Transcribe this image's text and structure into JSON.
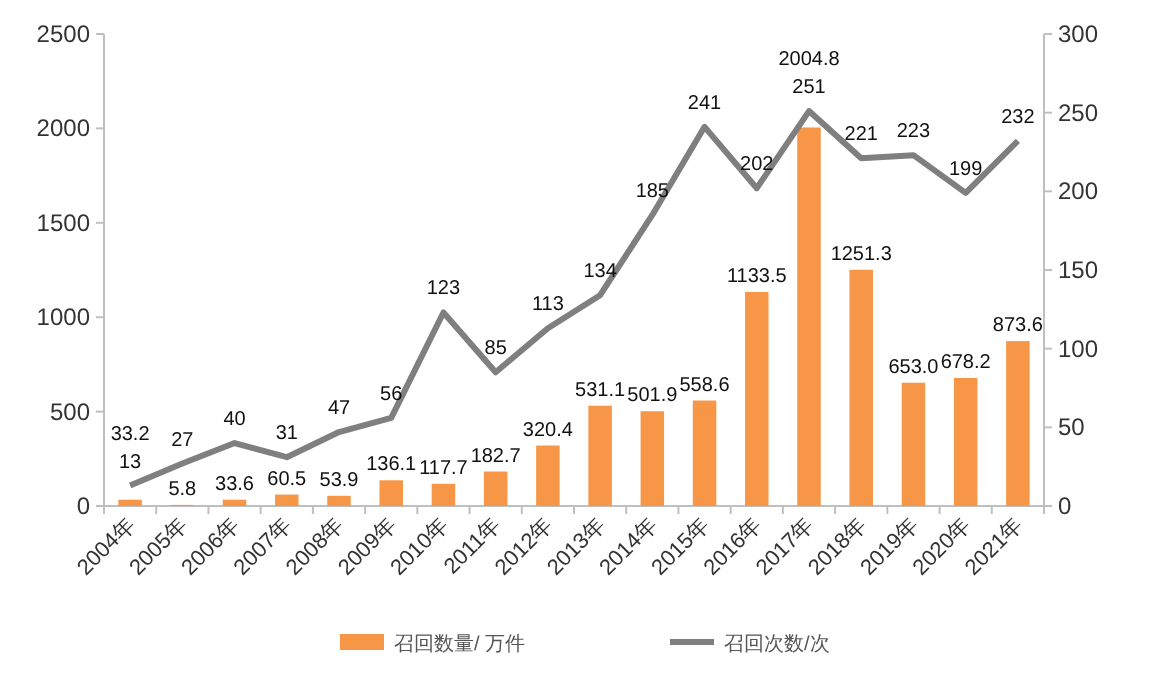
{
  "chart_data": {
    "type": "bar",
    "categories": [
      "2004年",
      "2005年",
      "2006年",
      "2007年",
      "2008年",
      "2009年",
      "2010年",
      "2011年",
      "2012年",
      "2013年",
      "2014年",
      "2015年",
      "2016年",
      "2017年",
      "2018年",
      "2019年",
      "2020年",
      "2021年"
    ],
    "series": [
      {
        "name": "召回数量/ 万件",
        "color": "#f79646",
        "values": [
          33.2,
          5.8,
          33.6,
          60.5,
          53.9,
          136.1,
          117.7,
          182.7,
          320.4,
          531.1,
          501.9,
          558.6,
          1133.5,
          2004.8,
          1251.3,
          653.0,
          678.2,
          873.6
        ],
        "value_labels": [
          "33.2",
          "5.8",
          "33.6",
          "60.5",
          "53.9",
          "136.1",
          "117.7",
          "182.7",
          "320.4",
          "531.1",
          "501.9",
          "558.6",
          "1133.5",
          "2004.8",
          "1251.3",
          "653.0",
          "678.2",
          "873.6"
        ]
      },
      {
        "name": "召回次数/次",
        "type": "line",
        "axis": "y2",
        "color": "#7f7f7f",
        "values": [
          13,
          27,
          40,
          31,
          47,
          56,
          123,
          85,
          113,
          134,
          185,
          241,
          202,
          251,
          221,
          223,
          199,
          232
        ],
        "value_labels": [
          "13",
          "27",
          "40",
          "31",
          "47",
          "56",
          "123",
          "85",
          "113",
          "134",
          "185",
          "241",
          "202",
          "251",
          "221",
          "223",
          "199",
          "232"
        ]
      }
    ],
    "ylim": [
      0,
      2500
    ],
    "yticks": [
      0,
      500,
      1000,
      1500,
      2000,
      2500
    ],
    "y2lim": [
      0,
      300
    ],
    "y2ticks": [
      0,
      50,
      100,
      150,
      200,
      250,
      300
    ],
    "legend": "bottom",
    "marker": "none",
    "line_style": "solid",
    "grid": false
  }
}
